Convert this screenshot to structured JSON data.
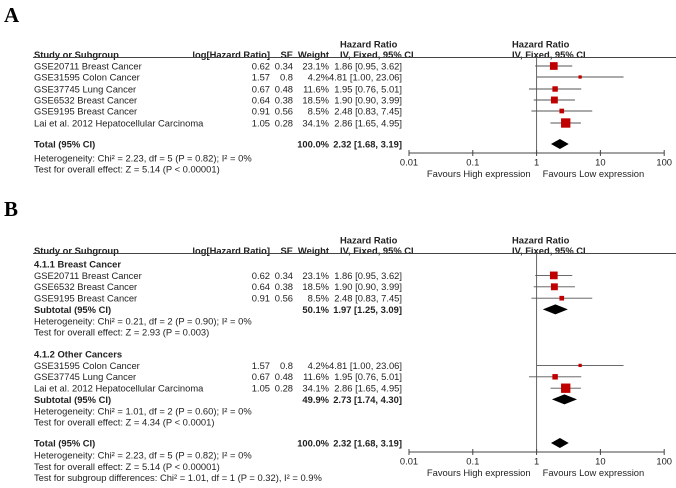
{
  "headers": {
    "study": "Study or Subgroup",
    "loghr": "log[Hazard Ratio]",
    "se": "SE",
    "weight": "Weight",
    "hr_title": "Hazard Ratio",
    "hr_method": "IV, Fixed, 95% CI"
  },
  "axis": {
    "ticks": [
      "0.01",
      "0.1",
      "1",
      "10",
      "100"
    ],
    "left_label": "Favours High expression",
    "right_label": "Favours Low expression"
  },
  "colors": {
    "study_marker": "#c00000",
    "summary_diamond": "#000000"
  },
  "chart_data": [
    {
      "type": "forest",
      "panel": "A",
      "scale": "log",
      "xlim": [
        0.01,
        100
      ],
      "rows": [
        {
          "label": "GSE20711 Breast Cancer",
          "loghr": "0.62",
          "se": "0.34",
          "weight": "23.1%",
          "hr": 1.86,
          "lo": 0.95,
          "hi": 3.62,
          "ci_text": "1.86 [0.95, 3.62]"
        },
        {
          "label": "GSE31595 Colon Cancer",
          "loghr": "1.57",
          "se": "0.8",
          "weight": "4.2%",
          "hr": 4.81,
          "lo": 1.0,
          "hi": 23.06,
          "ci_text": "4.81 [1.00, 23.06]"
        },
        {
          "label": "GSE37745 Lung Cancer",
          "loghr": "0.67",
          "se": "0.48",
          "weight": "11.6%",
          "hr": 1.95,
          "lo": 0.76,
          "hi": 5.01,
          "ci_text": "1.95 [0.76, 5.01]"
        },
        {
          "label": "GSE6532 Breast Cancer",
          "loghr": "0.64",
          "se": "0.38",
          "weight": "18.5%",
          "hr": 1.9,
          "lo": 0.9,
          "hi": 3.99,
          "ci_text": "1.90 [0.90, 3.99]"
        },
        {
          "label": "GSE9195 Breast Cancer",
          "loghr": "0.91",
          "se": "0.56",
          "weight": "8.5%",
          "hr": 2.48,
          "lo": 0.83,
          "hi": 7.45,
          "ci_text": "2.48 [0.83, 7.45]"
        },
        {
          "label": "Lai et al. 2012 Hepatocellular Carcinoma",
          "loghr": "1.05",
          "se": "0.28",
          "weight": "34.1%",
          "hr": 2.86,
          "lo": 1.65,
          "hi": 4.95,
          "ci_text": "2.86 [1.65, 4.95]"
        }
      ],
      "total": {
        "label": "Total (95% CI)",
        "weight": "100.0%",
        "hr": 2.32,
        "lo": 1.68,
        "hi": 3.19,
        "ci_text": "2.32 [1.68, 3.19]"
      },
      "notes": [
        "Heterogeneity: Chi² = 2.23, df = 5 (P = 0.82); I² = 0%",
        "Test for overall effect: Z = 5.14 (P < 0.00001)"
      ]
    },
    {
      "type": "forest",
      "panel": "B",
      "scale": "log",
      "xlim": [
        0.01,
        100
      ],
      "subgroups": [
        {
          "title": "4.1.1 Breast Cancer",
          "rows": [
            {
              "label": "GSE20711 Breast Cancer",
              "loghr": "0.62",
              "se": "0.34",
              "weight": "23.1%",
              "hr": 1.86,
              "lo": 0.95,
              "hi": 3.62,
              "ci_text": "1.86 [0.95, 3.62]"
            },
            {
              "label": "GSE6532 Breast Cancer",
              "loghr": "0.64",
              "se": "0.38",
              "weight": "18.5%",
              "hr": 1.9,
              "lo": 0.9,
              "hi": 3.99,
              "ci_text": "1.90 [0.90, 3.99]"
            },
            {
              "label": "GSE9195 Breast Cancer",
              "loghr": "0.91",
              "se": "0.56",
              "weight": "8.5%",
              "hr": 2.48,
              "lo": 0.83,
              "hi": 7.45,
              "ci_text": "2.48 [0.83, 7.45]"
            }
          ],
          "subtotal": {
            "label": "Subtotal (95% CI)",
            "weight": "50.1%",
            "hr": 1.97,
            "lo": 1.25,
            "hi": 3.09,
            "ci_text": "1.97 [1.25, 3.09]"
          },
          "notes": [
            "Heterogeneity: Chi² = 0.21, df = 2 (P = 0.90); I² = 0%",
            "Test for overall effect: Z = 2.93 (P = 0.003)"
          ]
        },
        {
          "title": "4.1.2 Other Cancers",
          "rows": [
            {
              "label": "GSE31595 Colon Cancer",
              "loghr": "1.57",
              "se": "0.8",
              "weight": "4.2%",
              "hr": 4.81,
              "lo": 1.0,
              "hi": 23.06,
              "ci_text": "4.81 [1.00, 23.06]"
            },
            {
              "label": "GSE37745 Lung Cancer",
              "loghr": "0.67",
              "se": "0.48",
              "weight": "11.6%",
              "hr": 1.95,
              "lo": 0.76,
              "hi": 5.01,
              "ci_text": "1.95 [0.76, 5.01]"
            },
            {
              "label": "Lai et al. 2012 Hepatocellular Carcinoma",
              "loghr": "1.05",
              "se": "0.28",
              "weight": "34.1%",
              "hr": 2.86,
              "lo": 1.65,
              "hi": 4.95,
              "ci_text": "2.86 [1.65, 4.95]"
            }
          ],
          "subtotal": {
            "label": "Subtotal (95% CI)",
            "weight": "49.9%",
            "hr": 2.73,
            "lo": 1.74,
            "hi": 4.3,
            "ci_text": "2.73 [1.74, 4.30]"
          },
          "notes": [
            "Heterogeneity: Chi² = 1.01, df = 2 (P = 0.60); I² = 0%",
            "Test for overall effect: Z = 4.34 (P < 0.0001)"
          ]
        }
      ],
      "total": {
        "label": "Total (95% CI)",
        "weight": "100.0%",
        "hr": 2.32,
        "lo": 1.68,
        "hi": 3.19,
        "ci_text": "2.32 [1.68, 3.19]"
      },
      "notes": [
        "Heterogeneity: Chi² = 2.23, df = 5 (P = 0.82); I² = 0%",
        "Test for overall effect: Z = 5.14 (P < 0.00001)",
        "Test for subgroup differences: Chi² = 1.01, df = 1 (P = 0.32), I² = 0.9%"
      ]
    }
  ]
}
